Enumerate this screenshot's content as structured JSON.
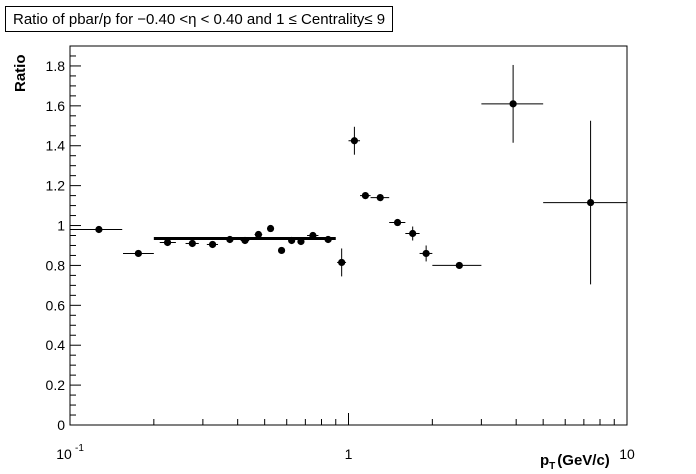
{
  "chart_data": {
    "type": "scatter",
    "title": "Ratio of pbar/p for −0.40 <η < 0.40 and 1 ≤ Centrality≤ 9",
    "ylabel": "Ratio",
    "xlabel_main": "p",
    "xlabel_sub": "T",
    "xlabel_unit": "(GeV/c)",
    "x_scale": "log",
    "xlim": [
      0.1,
      10
    ],
    "ylim": [
      0,
      1.9
    ],
    "x_ticks": [
      {
        "value": 0.1,
        "label": "10",
        "sup": "-1"
      },
      {
        "value": 1,
        "label": "1",
        "sup": ""
      },
      {
        "value": 10,
        "label": "10",
        "sup": ""
      }
    ],
    "y_ticks": [
      "0",
      "0.2",
      "0.4",
      "0.6",
      "0.8",
      "1",
      "1.2",
      "1.4",
      "1.6",
      "1.8"
    ],
    "points": [
      {
        "x": 0.127,
        "y": 0.98,
        "xlo": 0.1,
        "xhi": 0.154,
        "ylo": 0.98,
        "yhi": 0.98
      },
      {
        "x": 0.176,
        "y": 0.86,
        "xlo": 0.155,
        "xhi": 0.2,
        "ylo": 0.86,
        "yhi": 0.86
      },
      {
        "x": 0.224,
        "y": 0.915,
        "xlo": 0.21,
        "xhi": 0.24,
        "ylo": 0.915,
        "yhi": 0.915
      },
      {
        "x": 0.275,
        "y": 0.91,
        "xlo": 0.26,
        "xhi": 0.29,
        "ylo": 0.91,
        "yhi": 0.91
      },
      {
        "x": 0.325,
        "y": 0.905,
        "xlo": 0.31,
        "xhi": 0.34,
        "ylo": 0.905,
        "yhi": 0.905
      },
      {
        "x": 0.375,
        "y": 0.93,
        "xlo": 0.36,
        "xhi": 0.39,
        "ylo": 0.93,
        "yhi": 0.93
      },
      {
        "x": 0.425,
        "y": 0.925,
        "xlo": 0.41,
        "xhi": 0.44,
        "ylo": 0.925,
        "yhi": 0.925
      },
      {
        "x": 0.475,
        "y": 0.955,
        "xlo": 0.46,
        "xhi": 0.49,
        "ylo": 0.955,
        "yhi": 0.955
      },
      {
        "x": 0.525,
        "y": 0.985,
        "xlo": 0.51,
        "xhi": 0.54,
        "ylo": 0.985,
        "yhi": 0.985
      },
      {
        "x": 0.575,
        "y": 0.875,
        "xlo": 0.56,
        "xhi": 0.59,
        "ylo": 0.875,
        "yhi": 0.875
      },
      {
        "x": 0.625,
        "y": 0.925,
        "xlo": 0.61,
        "xhi": 0.64,
        "ylo": 0.925,
        "yhi": 0.925
      },
      {
        "x": 0.675,
        "y": 0.92,
        "xlo": 0.66,
        "xhi": 0.69,
        "ylo": 0.92,
        "yhi": 0.92
      },
      {
        "x": 0.745,
        "y": 0.95,
        "xlo": 0.71,
        "xhi": 0.78,
        "ylo": 0.95,
        "yhi": 0.95
      },
      {
        "x": 0.845,
        "y": 0.93,
        "xlo": 0.81,
        "xhi": 0.88,
        "ylo": 0.93,
        "yhi": 0.93
      },
      {
        "x": 0.945,
        "y": 0.815,
        "xlo": 0.91,
        "xhi": 0.98,
        "ylo": 0.745,
        "yhi": 0.885
      },
      {
        "x": 1.05,
        "y": 1.425,
        "xlo": 1.0,
        "xhi": 1.1,
        "ylo": 1.355,
        "yhi": 1.495
      },
      {
        "x": 1.15,
        "y": 1.15,
        "xlo": 1.1,
        "xhi": 1.2,
        "ylo": 1.15,
        "yhi": 1.15
      },
      {
        "x": 1.3,
        "y": 1.14,
        "xlo": 1.2,
        "xhi": 1.4,
        "ylo": 1.14,
        "yhi": 1.14
      },
      {
        "x": 1.5,
        "y": 1.015,
        "xlo": 1.4,
        "xhi": 1.6,
        "ylo": 1.015,
        "yhi": 1.015
      },
      {
        "x": 1.7,
        "y": 0.96,
        "xlo": 1.6,
        "xhi": 1.8,
        "ylo": 0.925,
        "yhi": 0.995
      },
      {
        "x": 1.9,
        "y": 0.86,
        "xlo": 1.8,
        "xhi": 2.0,
        "ylo": 0.82,
        "yhi": 0.9
      },
      {
        "x": 2.5,
        "y": 0.8,
        "xlo": 2.0,
        "xhi": 3.0,
        "ylo": 0.8,
        "yhi": 0.8
      },
      {
        "x": 3.9,
        "y": 1.61,
        "xlo": 3.0,
        "xhi": 5.0,
        "ylo": 1.415,
        "yhi": 1.805
      },
      {
        "x": 7.4,
        "y": 1.115,
        "xlo": 5.0,
        "xhi": 10.0,
        "ylo": 0.705,
        "yhi": 1.525
      }
    ],
    "fit_line": {
      "x_start": 0.2,
      "x_end": 0.9,
      "y": 0.935
    }
  }
}
